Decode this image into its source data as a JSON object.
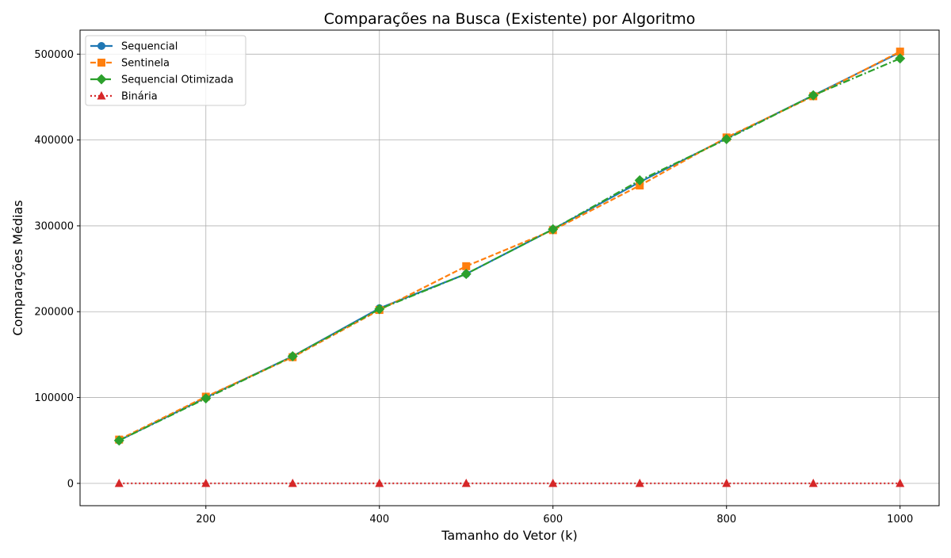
{
  "chart_data": {
    "type": "line",
    "title": "Comparações na Busca (Existente) por Algoritmo",
    "xlabel": "Tamanho do Vetor (k)",
    "ylabel": "Comparações Médias",
    "x": [
      100,
      200,
      300,
      400,
      500,
      600,
      700,
      800,
      900,
      1000
    ],
    "xlim": [
      55,
      1045
    ],
    "ylim": [
      -26000,
      528000
    ],
    "xticks": [
      200,
      400,
      600,
      800,
      1000
    ],
    "yticks": [
      0,
      100000,
      200000,
      300000,
      400000,
      500000
    ],
    "grid": true,
    "legend_position": "top-left",
    "series": [
      {
        "name": "Sequencial",
        "color": "#1f77b4",
        "line_style": "solid",
        "marker": "circle",
        "values": [
          50000,
          100000,
          148000,
          204000,
          244000,
          296000,
          351000,
          402000,
          452000,
          502000
        ]
      },
      {
        "name": "Sentinela",
        "color": "#ff7f0e",
        "line_style": "dashed",
        "marker": "square",
        "values": [
          51000,
          101000,
          147000,
          202000,
          253000,
          295000,
          347000,
          403000,
          451000,
          503000
        ]
      },
      {
        "name": "Sequencial Otimizada",
        "color": "#2ca02c",
        "line_style": "dashdot",
        "marker": "diamond",
        "values": [
          50000,
          99000,
          148000,
          203000,
          244000,
          296000,
          353000,
          401000,
          452000,
          495000
        ]
      },
      {
        "name": "Binária",
        "color": "#d62728",
        "line_style": "dotted",
        "marker": "triangle",
        "values": [
          9,
          10,
          11,
          11,
          12,
          12,
          12,
          12,
          13,
          13
        ]
      }
    ]
  }
}
